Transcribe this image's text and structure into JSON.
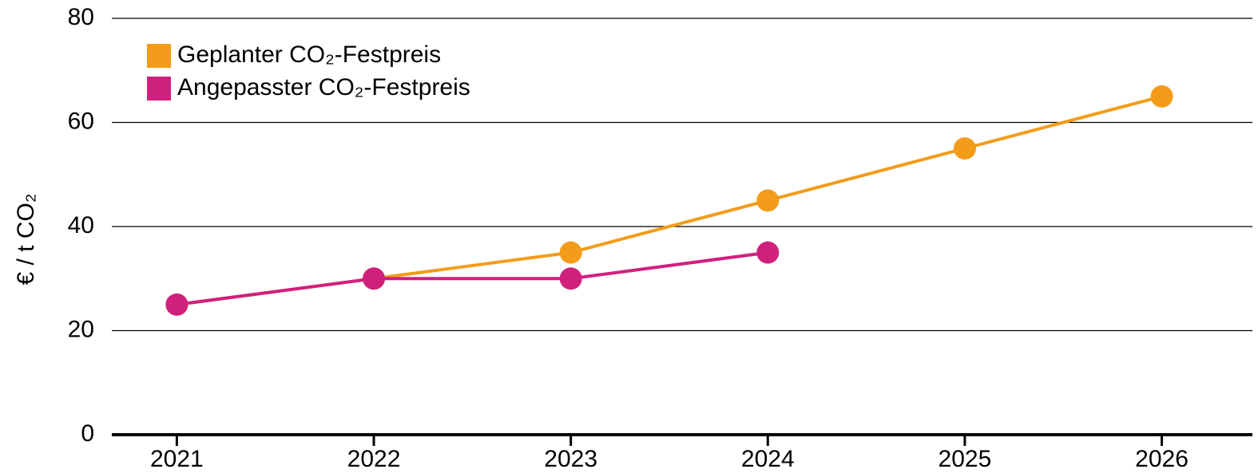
{
  "chart_data": {
    "type": "line",
    "ylabel": "€ / t CO₂",
    "x": [
      2021,
      2022,
      2023,
      2024,
      2025,
      2026
    ],
    "series": [
      {
        "name": "Geplanter CO₂-Festpreis",
        "color": "#f39c1a",
        "values": [
          25,
          30,
          35,
          45,
          55,
          65
        ]
      },
      {
        "name": "Angepasster CO₂-Festpreis",
        "color": "#d0207e",
        "values": [
          25,
          30,
          30,
          35,
          null,
          null
        ]
      }
    ],
    "xlim": [
      2020.67,
      2026.46
    ],
    "xticks": [
      2021,
      2022,
      2023,
      2024,
      2025,
      2026
    ],
    "ylim": [
      0,
      80
    ],
    "yticks": [
      0,
      20,
      40,
      60,
      80
    ],
    "grid": true,
    "legend": "upper left"
  }
}
